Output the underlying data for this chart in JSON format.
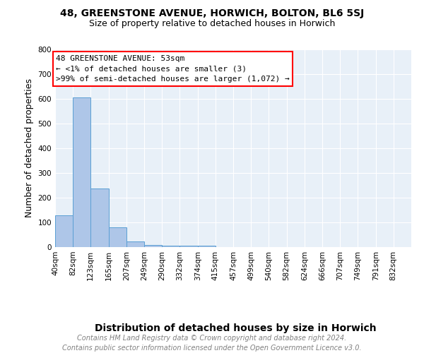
{
  "title": "48, GREENSTONE AVENUE, HORWICH, BOLTON, BL6 5SJ",
  "subtitle": "Size of property relative to detached houses in Horwich",
  "xlabel": "Distribution of detached houses by size in Horwich",
  "ylabel": "Number of detached properties",
  "footer_line1": "Contains HM Land Registry data © Crown copyright and database right 2024.",
  "footer_line2": "Contains public sector information licensed under the Open Government Licence v3.0.",
  "annotation_line1": "48 GREENSTONE AVENUE: 53sqm",
  "annotation_line2": "← <1% of detached houses are smaller (3)",
  "annotation_line3": ">99% of semi-detached houses are larger (1,072) →",
  "bar_edges": [
    40,
    82,
    123,
    165,
    207,
    249,
    290,
    332,
    374,
    415,
    457,
    499,
    540,
    582,
    624,
    666,
    707,
    749,
    791,
    832,
    874
  ],
  "bar_heights": [
    128,
    605,
    236,
    80,
    22,
    10,
    7,
    5,
    7,
    0,
    0,
    0,
    0,
    0,
    0,
    0,
    0,
    0,
    0,
    0
  ],
  "bar_color": "#aec6e8",
  "bar_edgecolor": "#5a9fd4",
  "plot_bg": "#e8f0f8",
  "ylim": [
    0,
    800
  ],
  "yticks": [
    0,
    100,
    200,
    300,
    400,
    500,
    600,
    700,
    800
  ],
  "grid_color": "#ffffff",
  "title_fontsize": 10,
  "subtitle_fontsize": 9,
  "axis_label_fontsize": 9,
  "tick_fontsize": 7.5,
  "footer_fontsize": 7,
  "annotation_fontsize": 8
}
